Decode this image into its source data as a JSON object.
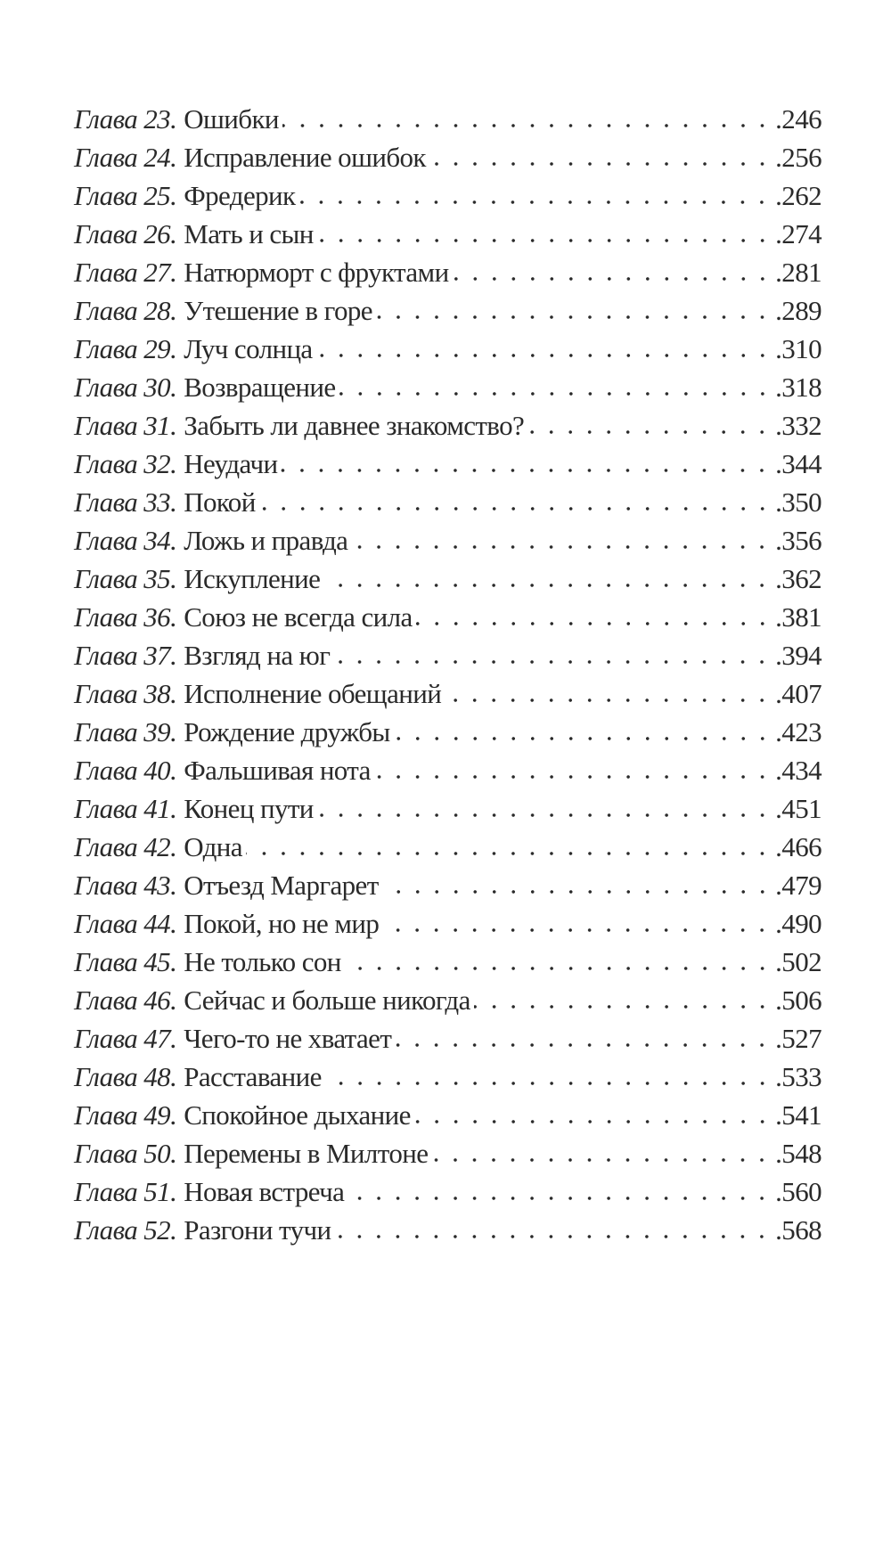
{
  "toc": [
    {
      "chapter": "Глава 23.",
      "title": "Ошибки",
      "page": ".246"
    },
    {
      "chapter": "Глава 24.",
      "title": "Исправление ошибок",
      "page": ".256"
    },
    {
      "chapter": "Глава 25.",
      "title": "Фредерик",
      "page": ".262"
    },
    {
      "chapter": "Глава 26.",
      "title": "Мать и сын",
      "page": ".274"
    },
    {
      "chapter": "Глава 27.",
      "title": "Натюрморт с фруктами",
      "page": ".281"
    },
    {
      "chapter": "Глава 28.",
      "title": "Утешение в горе",
      "page": ".289"
    },
    {
      "chapter": "Глава 29.",
      "title": "Луч солнца",
      "page": ".310"
    },
    {
      "chapter": "Глава 30.",
      "title": "Возвращение",
      "page": ".318"
    },
    {
      "chapter": "Глава 31.",
      "title": "Забыть ли давнее знакомство?",
      "page": ".332"
    },
    {
      "chapter": "Глава 32.",
      "title": "Неудачи",
      "page": ".344"
    },
    {
      "chapter": "Глава 33.",
      "title": "Покой",
      "page": ".350"
    },
    {
      "chapter": "Глава 34.",
      "title": "Ложь и правда",
      "page": ".356"
    },
    {
      "chapter": "Глава 35.",
      "title": "Искупление",
      "page": ".362"
    },
    {
      "chapter": "Глава 36.",
      "title": "Союз не всегда сила",
      "page": ".381"
    },
    {
      "chapter": "Глава 37.",
      "title": "Взгляд на юг",
      "page": ".394"
    },
    {
      "chapter": "Глава 38.",
      "title": "Исполнение обещаний",
      "page": ".407"
    },
    {
      "chapter": "Глава 39.",
      "title": "Рождение дружбы",
      "page": ".423"
    },
    {
      "chapter": "Глава 40.",
      "title": "Фальшивая нота",
      "page": ".434"
    },
    {
      "chapter": "Глава 41.",
      "title": "Конец пути",
      "page": ".451"
    },
    {
      "chapter": "Глава 42.",
      "title": "Одна",
      "page": ".466"
    },
    {
      "chapter": "Глава 43.",
      "title": "Отъезд Маргарет",
      "page": ".479"
    },
    {
      "chapter": "Глава 44.",
      "title": "Покой, но не мир",
      "page": ".490"
    },
    {
      "chapter": "Глава 45.",
      "title": "Не только сон",
      "page": ".502"
    },
    {
      "chapter": "Глава 46.",
      "title": "Сейчас и больше никогда",
      "page": ".506"
    },
    {
      "chapter": "Глава 47.",
      "title": "Чего-то не хватает",
      "page": ".527"
    },
    {
      "chapter": "Глава 48.",
      "title": "Расставание",
      "page": ".533"
    },
    {
      "chapter": "Глава 49.",
      "title": "Спокойное дыхание",
      "page": ".541"
    },
    {
      "chapter": "Глава 50.",
      "title": "Перемены в Милтоне",
      "page": ".548"
    },
    {
      "chapter": "Глава 51.",
      "title": "Новая встреча",
      "page": ".560"
    },
    {
      "chapter": "Глава 52.",
      "title": "Разгони тучи",
      "page": ".568"
    }
  ]
}
